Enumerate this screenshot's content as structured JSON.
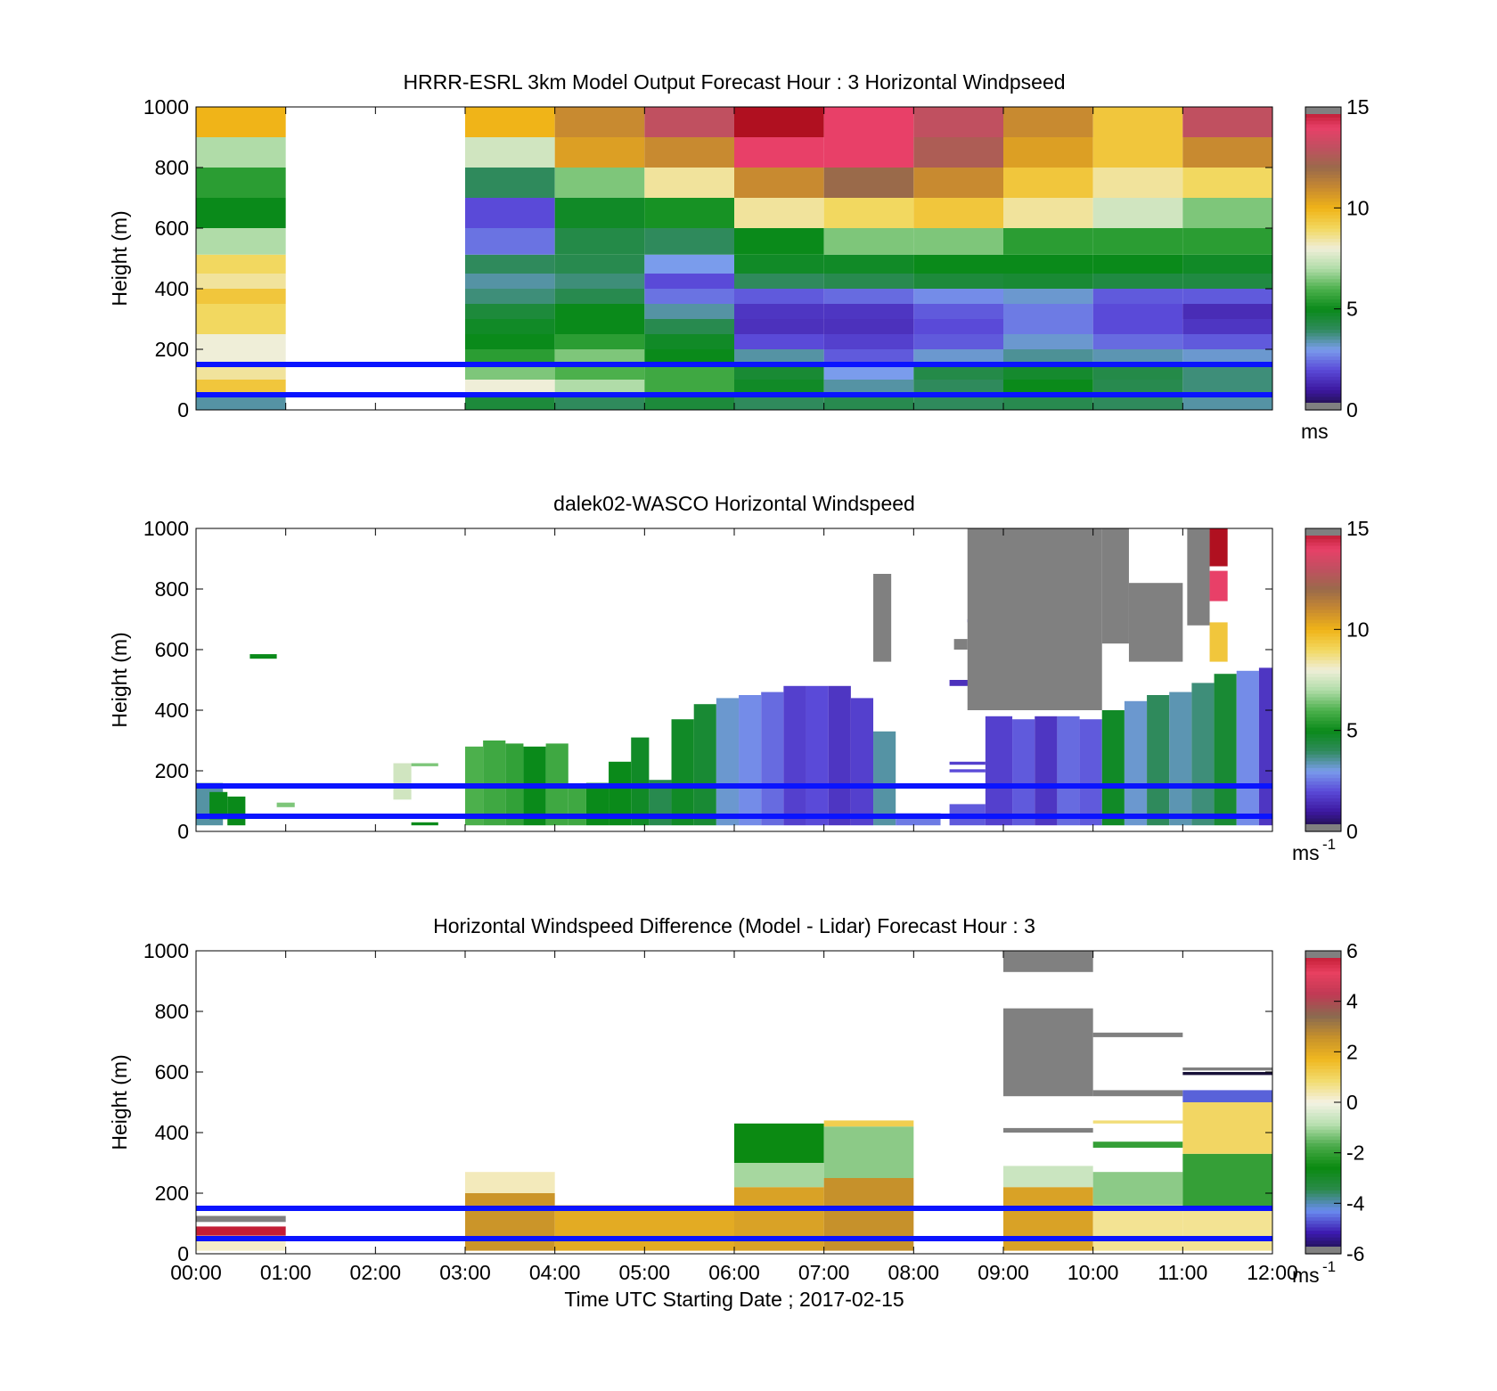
{
  "colors": {
    "overlay_line": "#0a14ff",
    "missing": "#808080",
    "colormap_speed": [
      "#1a1033",
      "#3d18a0",
      "#5a4ad8",
      "#7a9cec",
      "#2f8a5c",
      "#0a8a1a",
      "#4cb04c",
      "#b0dca8",
      "#efeed8",
      "#f2d860",
      "#f0b418",
      "#c88a30",
      "#9a6a4a",
      "#c05060",
      "#e84068",
      "#b01020"
    ],
    "colormap_diff": [
      "#181038",
      "#3c1ab0",
      "#6a8cf0",
      "#2a8a4a",
      "#0a8a10",
      "#4aaa4a",
      "#b8e0b0",
      "#f4f2e4",
      "#f2dc70",
      "#f0b820",
      "#c8922a",
      "#8a6a50",
      "#c03a54",
      "#e84060",
      "#b81228"
    ]
  },
  "chart_data": [
    {
      "type": "heatmap",
      "title": "HRRR-ESRL 3km Model Output   Forecast Hour : 3 Horizontal Windpseed",
      "xlabel": "",
      "ylabel": "Height (m)",
      "xlim": [
        0,
        12
      ],
      "ylim": [
        0,
        1000
      ],
      "yticks": [
        0,
        200,
        400,
        600,
        800,
        1000
      ],
      "x_tick_labels": [],
      "colorbar": {
        "ticks": [
          0,
          5,
          10,
          15
        ],
        "range": [
          0,
          15
        ],
        "unit": "ms",
        "unit_sup": ""
      },
      "colormap": "speed",
      "reference_lines": [
        50,
        150
      ],
      "time_hours": [
        0,
        3,
        4,
        5,
        6,
        7,
        8,
        9,
        10,
        11
      ],
      "height_levels_m": [
        25,
        75,
        125,
        175,
        225,
        275,
        325,
        375,
        425,
        475,
        550,
        650,
        750,
        850,
        950
      ],
      "values": [
        [
          3.5,
          9.5,
          8.5,
          8.0,
          8.0,
          9.0,
          9.0,
          9.5,
          8.5,
          9.0,
          7.0,
          5.0,
          5.5,
          7.0,
          10.0
        ],
        [
          4.5,
          8.0,
          6.5,
          5.5,
          5.0,
          4.8,
          4.5,
          3.8,
          3.5,
          4.0,
          2.5,
          2.0,
          4.0,
          7.5,
          10.0
        ],
        [
          4.0,
          7.0,
          6.0,
          6.5,
          5.5,
          5.0,
          5.0,
          4.2,
          3.8,
          4.2,
          4.3,
          4.8,
          6.5,
          10.5,
          11.0
        ],
        [
          4.5,
          5.8,
          5.8,
          5.0,
          4.8,
          4.2,
          3.5,
          2.5,
          2.0,
          3.0,
          4.0,
          5.2,
          8.5,
          11.0,
          13.0
        ],
        [
          4.0,
          4.8,
          4.6,
          3.5,
          2.0,
          1.5,
          1.6,
          2.2,
          4.0,
          4.8,
          5.0,
          8.5,
          11.0,
          14.0,
          15.0
        ],
        [
          4.2,
          3.5,
          3.0,
          2.2,
          1.8,
          1.5,
          1.6,
          2.4,
          4.2,
          4.8,
          6.5,
          9.0,
          12.0,
          14.0,
          14.0
        ],
        [
          4.0,
          4.0,
          4.3,
          3.2,
          2.2,
          2.0,
          2.2,
          2.8,
          4.5,
          5.0,
          6.5,
          9.5,
          11.0,
          12.5,
          13.0
        ],
        [
          4.2,
          5.0,
          4.7,
          3.6,
          3.2,
          2.6,
          2.6,
          3.2,
          4.6,
          5.0,
          5.5,
          8.5,
          9.5,
          10.5,
          11.0
        ],
        [
          4.0,
          4.2,
          4.3,
          3.4,
          2.4,
          2.0,
          2.0,
          2.2,
          4.4,
          5.0,
          5.5,
          7.5,
          8.5,
          9.5,
          9.5
        ],
        [
          3.5,
          3.8,
          3.8,
          3.2,
          2.2,
          1.6,
          1.4,
          2.2,
          4.4,
          4.8,
          5.5,
          6.5,
          9.0,
          11.0,
          13.0
        ]
      ]
    },
    {
      "type": "heatmap",
      "title": "dalek02-WASCO  Horizontal Windspeed",
      "xlabel": "",
      "ylabel": "Height (m)",
      "xlim": [
        0,
        12
      ],
      "ylim": [
        0,
        1000
      ],
      "yticks": [
        0,
        200,
        400,
        600,
        800,
        1000
      ],
      "x_tick_labels": [],
      "colorbar": {
        "ticks": [
          0,
          5,
          10,
          15
        ],
        "range": [
          0,
          15
        ],
        "unit": "ms",
        "unit_sup": "-1"
      },
      "colormap": "speed",
      "reference_lines": [
        50,
        150
      ],
      "columns": [
        {
          "x0": 0.0,
          "x1": 0.3,
          "y0": 20,
          "y1": 160,
          "v": 3.5
        },
        {
          "x0": 0.15,
          "x1": 0.35,
          "y0": 40,
          "y1": 130,
          "v": 5.0
        },
        {
          "x0": 0.35,
          "x1": 0.55,
          "y0": 20,
          "y1": 115,
          "v": 5.0
        },
        {
          "x0": 0.6,
          "x1": 0.9,
          "y0": 570,
          "y1": 585,
          "v": 5.0
        },
        {
          "x0": 0.9,
          "x1": 1.1,
          "y0": 80,
          "y1": 95,
          "v": 6.5
        },
        {
          "x0": 2.2,
          "x1": 2.4,
          "y0": 105,
          "y1": 225,
          "v": 7.5
        },
        {
          "x0": 2.4,
          "x1": 2.7,
          "y0": 215,
          "y1": 225,
          "v": 6.5
        },
        {
          "x0": 2.4,
          "x1": 2.7,
          "y0": 20,
          "y1": 30,
          "v": 5.0
        },
        {
          "x0": 3.0,
          "x1": 3.2,
          "y0": 20,
          "y1": 280,
          "v": 6.0
        },
        {
          "x0": 3.2,
          "x1": 3.45,
          "y0": 20,
          "y1": 300,
          "v": 5.8
        },
        {
          "x0": 3.45,
          "x1": 3.65,
          "y0": 20,
          "y1": 290,
          "v": 5.6
        },
        {
          "x0": 3.65,
          "x1": 3.9,
          "y0": 20,
          "y1": 280,
          "v": 5.0
        },
        {
          "x0": 3.9,
          "x1": 4.15,
          "y0": 20,
          "y1": 290,
          "v": 5.8
        },
        {
          "x0": 4.15,
          "x1": 4.35,
          "y0": 20,
          "y1": 150,
          "v": 5.8
        },
        {
          "x0": 4.35,
          "x1": 4.6,
          "y0": 20,
          "y1": 160,
          "v": 5.0
        },
        {
          "x0": 4.6,
          "x1": 4.85,
          "y0": 20,
          "y1": 230,
          "v": 5.0
        },
        {
          "x0": 4.85,
          "x1": 5.05,
          "y0": 20,
          "y1": 310,
          "v": 4.8
        },
        {
          "x0": 5.05,
          "x1": 5.3,
          "y0": 20,
          "y1": 170,
          "v": 4.2
        },
        {
          "x0": 5.3,
          "x1": 5.55,
          "y0": 20,
          "y1": 370,
          "v": 4.8
        },
        {
          "x0": 5.55,
          "x1": 5.8,
          "y0": 20,
          "y1": 420,
          "v": 4.6
        },
        {
          "x0": 5.8,
          "x1": 6.05,
          "y0": 20,
          "y1": 440,
          "v": 3.2
        },
        {
          "x0": 6.05,
          "x1": 6.3,
          "y0": 20,
          "y1": 450,
          "v": 2.8
        },
        {
          "x0": 6.3,
          "x1": 6.55,
          "y0": 20,
          "y1": 460,
          "v": 2.4
        },
        {
          "x0": 6.55,
          "x1": 6.8,
          "y0": 20,
          "y1": 480,
          "v": 1.8
        },
        {
          "x0": 6.8,
          "x1": 7.05,
          "y0": 20,
          "y1": 480,
          "v": 2.0
        },
        {
          "x0": 7.05,
          "x1": 7.3,
          "y0": 20,
          "y1": 480,
          "v": 1.6
        },
        {
          "x0": 7.3,
          "x1": 7.55,
          "y0": 20,
          "y1": 440,
          "v": 1.8
        },
        {
          "x0": 7.55,
          "x1": 7.8,
          "y0": 20,
          "y1": 330,
          "v": 3.5
        },
        {
          "x0": 7.8,
          "x1": 8.3,
          "y0": 20,
          "y1": 60,
          "v": 2.6
        },
        {
          "x0": 8.4,
          "x1": 8.8,
          "y0": 20,
          "y1": 90,
          "v": 2.2
        },
        {
          "x0": 8.4,
          "x1": 8.8,
          "y0": 195,
          "y1": 205,
          "v": 2.0
        },
        {
          "x0": 8.4,
          "x1": 8.8,
          "y0": 220,
          "y1": 230,
          "v": 1.8
        },
        {
          "x0": 8.45,
          "x1": 8.6,
          "y0": 600,
          "y1": 635,
          "v": -1
        },
        {
          "x0": 8.6,
          "x1": 8.8,
          "y0": 690,
          "y1": 700,
          "v": 2.0
        },
        {
          "x0": 8.4,
          "x1": 8.8,
          "y0": 480,
          "y1": 500,
          "v": 1.5
        },
        {
          "x0": 8.8,
          "x1": 9.1,
          "y0": 20,
          "y1": 380,
          "v": 1.8
        },
        {
          "x0": 9.1,
          "x1": 9.35,
          "y0": 20,
          "y1": 370,
          "v": 2.2
        },
        {
          "x0": 9.35,
          "x1": 9.6,
          "y0": 20,
          "y1": 380,
          "v": 1.6
        },
        {
          "x0": 9.6,
          "x1": 9.85,
          "y0": 20,
          "y1": 380,
          "v": 2.4
        },
        {
          "x0": 9.85,
          "x1": 10.1,
          "y0": 20,
          "y1": 370,
          "v": 2.2
        },
        {
          "x0": 10.1,
          "x1": 10.35,
          "y0": 20,
          "y1": 400,
          "v": 4.8
        },
        {
          "x0": 10.35,
          "x1": 10.6,
          "y0": 20,
          "y1": 430,
          "v": 3.2
        },
        {
          "x0": 10.6,
          "x1": 10.85,
          "y0": 20,
          "y1": 450,
          "v": 4.0
        },
        {
          "x0": 10.85,
          "x1": 11.1,
          "y0": 20,
          "y1": 460,
          "v": 3.4
        },
        {
          "x0": 11.1,
          "x1": 11.35,
          "y0": 20,
          "y1": 490,
          "v": 3.8
        },
        {
          "x0": 11.35,
          "x1": 11.6,
          "y0": 20,
          "y1": 520,
          "v": 4.6
        },
        {
          "x0": 11.6,
          "x1": 11.85,
          "y0": 20,
          "y1": 530,
          "v": 2.8
        },
        {
          "x0": 11.85,
          "x1": 12.0,
          "y0": 20,
          "y1": 540,
          "v": 1.6
        },
        {
          "x0": 8.6,
          "x1": 10.1,
          "y0": 400,
          "y1": 1000,
          "v": -1
        },
        {
          "x0": 10.1,
          "x1": 10.4,
          "y0": 620,
          "y1": 1000,
          "v": -1
        },
        {
          "x0": 10.4,
          "x1": 11.0,
          "y0": 560,
          "y1": 820,
          "v": -1
        },
        {
          "x0": 11.05,
          "x1": 11.3,
          "y0": 680,
          "y1": 1000,
          "v": -1
        },
        {
          "x0": 7.55,
          "x1": 7.75,
          "y0": 560,
          "y1": 850,
          "v": -1
        },
        {
          "x0": 11.3,
          "x1": 11.5,
          "y0": 560,
          "y1": 690,
          "v": 9.5
        },
        {
          "x0": 11.3,
          "x1": 11.5,
          "y0": 760,
          "y1": 860,
          "v": 14.0
        },
        {
          "x0": 11.3,
          "x1": 11.5,
          "y0": 875,
          "y1": 1000,
          "v": 15.0
        }
      ]
    },
    {
      "type": "heatmap",
      "title": "Horizontal Windspeed Difference (Model - Lidar) Forecast Hour : 3",
      "xlabel": "Time UTC  Starting Date ; 2017-02-15",
      "ylabel": "Height (m)",
      "xlim": [
        0,
        12
      ],
      "ylim": [
        0,
        1000
      ],
      "yticks": [
        0,
        200,
        400,
        600,
        800,
        1000
      ],
      "x_tick_labels": [
        "00:00",
        "01:00",
        "02:00",
        "03:00",
        "04:00",
        "05:00",
        "06:00",
        "07:00",
        "08:00",
        "09:00",
        "10:00",
        "11:00",
        "12:00"
      ],
      "colorbar": {
        "ticks": [
          -6,
          -4,
          -2,
          0,
          2,
          4,
          6
        ],
        "range": [
          -6,
          6
        ],
        "unit": "ms",
        "unit_sup": "-1"
      },
      "colormap": "diff",
      "reference_lines": [
        50,
        150
      ],
      "columns": [
        {
          "x0": 0.0,
          "x1": 1.0,
          "y0": 10,
          "y1": 40,
          "v": 0.2
        },
        {
          "x0": 0.0,
          "x1": 1.0,
          "y0": 40,
          "y1": 60,
          "v": 0.4
        },
        {
          "x0": 0.0,
          "x1": 1.0,
          "y0": 60,
          "y1": 90,
          "v": 5.8
        },
        {
          "x0": 0.0,
          "x1": 1.0,
          "y0": 105,
          "y1": 125,
          "v": -9
        },
        {
          "x0": 3.0,
          "x1": 4.0,
          "y0": 10,
          "y1": 200,
          "v": 2.5
        },
        {
          "x0": 3.0,
          "x1": 4.0,
          "y0": 200,
          "y1": 270,
          "v": 0.3
        },
        {
          "x0": 4.0,
          "x1": 6.0,
          "y0": 10,
          "y1": 160,
          "v": 2.0
        },
        {
          "x0": 6.0,
          "x1": 7.0,
          "y0": 10,
          "y1": 220,
          "v": 2.2
        },
        {
          "x0": 6.0,
          "x1": 7.0,
          "y0": 220,
          "y1": 300,
          "v": -1.0
        },
        {
          "x0": 6.0,
          "x1": 7.0,
          "y0": 300,
          "y1": 430,
          "v": -2.6
        },
        {
          "x0": 7.0,
          "x1": 8.0,
          "y0": 10,
          "y1": 250,
          "v": 2.6
        },
        {
          "x0": 7.0,
          "x1": 8.0,
          "y0": 250,
          "y1": 420,
          "v": -1.2
        },
        {
          "x0": 7.0,
          "x1": 8.0,
          "y0": 420,
          "y1": 440,
          "v": 1.2
        },
        {
          "x0": 9.0,
          "x1": 10.0,
          "y0": 10,
          "y1": 220,
          "v": 2.2
        },
        {
          "x0": 9.0,
          "x1": 10.0,
          "y0": 220,
          "y1": 290,
          "v": -0.6
        },
        {
          "x0": 9.0,
          "x1": 10.0,
          "y0": 400,
          "y1": 415,
          "v": -9
        },
        {
          "x0": 9.0,
          "x1": 10.0,
          "y0": 520,
          "y1": 810,
          "v": -9
        },
        {
          "x0": 9.0,
          "x1": 10.0,
          "y0": 930,
          "y1": 1000,
          "v": -9
        },
        {
          "x0": 10.0,
          "x1": 11.0,
          "y0": 10,
          "y1": 160,
          "v": 0.6
        },
        {
          "x0": 10.0,
          "x1": 11.0,
          "y0": 160,
          "y1": 270,
          "v": -1.2
        },
        {
          "x0": 10.0,
          "x1": 11.0,
          "y0": 350,
          "y1": 370,
          "v": -2.0
        },
        {
          "x0": 10.0,
          "x1": 11.0,
          "y0": 430,
          "y1": 440,
          "v": 0.8
        },
        {
          "x0": 10.0,
          "x1": 11.0,
          "y0": 520,
          "y1": 540,
          "v": -9
        },
        {
          "x0": 10.0,
          "x1": 11.0,
          "y0": 715,
          "y1": 730,
          "v": -9
        },
        {
          "x0": 11.0,
          "x1": 12.0,
          "y0": 10,
          "y1": 150,
          "v": 0.6
        },
        {
          "x0": 11.0,
          "x1": 12.0,
          "y0": 150,
          "y1": 330,
          "v": -2.0
        },
        {
          "x0": 11.0,
          "x1": 12.0,
          "y0": 330,
          "y1": 500,
          "v": 1.0
        },
        {
          "x0": 11.0,
          "x1": 12.0,
          "y0": 500,
          "y1": 540,
          "v": -4.6
        },
        {
          "x0": 11.0,
          "x1": 12.0,
          "y0": 590,
          "y1": 600,
          "v": -6.0
        },
        {
          "x0": 11.0,
          "x1": 12.0,
          "y0": 605,
          "y1": 615,
          "v": -9
        }
      ]
    }
  ]
}
